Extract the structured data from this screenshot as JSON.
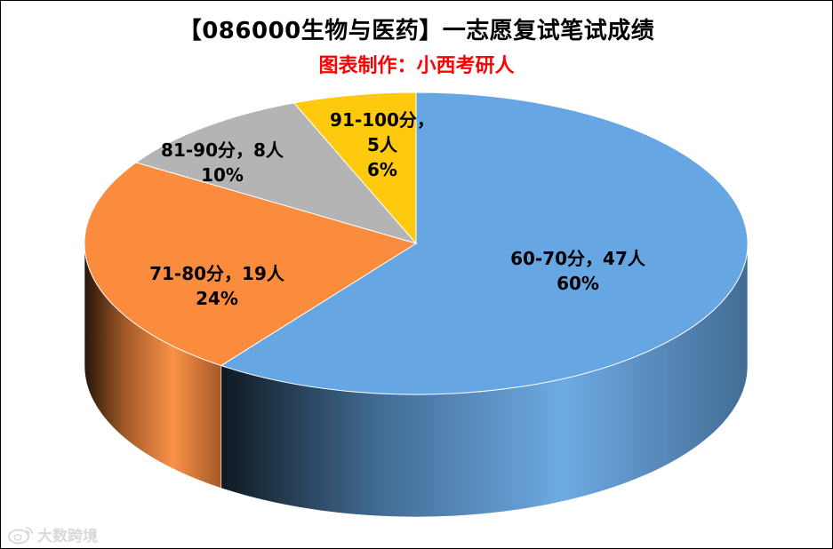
{
  "title": "【086000生物与医药】一志愿复试笔试成绩",
  "subtitle": "图表制作：小西考研人",
  "colors": {
    "subtitle": "#ff0000"
  },
  "watermark": {
    "text": "大数跨境",
    "icon": "weibo-logo-icon"
  },
  "chart_data": {
    "type": "pie",
    "style": "3d",
    "title": "【086000生物与医药】一志愿复试笔试成绩",
    "subtitle": "图表制作：小西考研人",
    "legend": "none",
    "slices": [
      {
        "category": "60-70分",
        "count": 47,
        "percent": 60,
        "color": "#66a6e3",
        "label_lines": [
          "60-70分，47人",
          "60%"
        ]
      },
      {
        "category": "71-80分",
        "count": 19,
        "percent": 24,
        "color": "#fb8b3d",
        "label_lines": [
          "71-80分，19人",
          "24%"
        ]
      },
      {
        "category": "81-90分",
        "count": 8,
        "percent": 10,
        "color": "#b4b4b4",
        "label_lines": [
          "81-90分，8人",
          "10%"
        ]
      },
      {
        "category": "91-100分",
        "count": 5,
        "percent": 6,
        "color": "#ffc90d",
        "label_lines": [
          "91-100分，",
          "5人",
          "6%"
        ]
      }
    ]
  }
}
